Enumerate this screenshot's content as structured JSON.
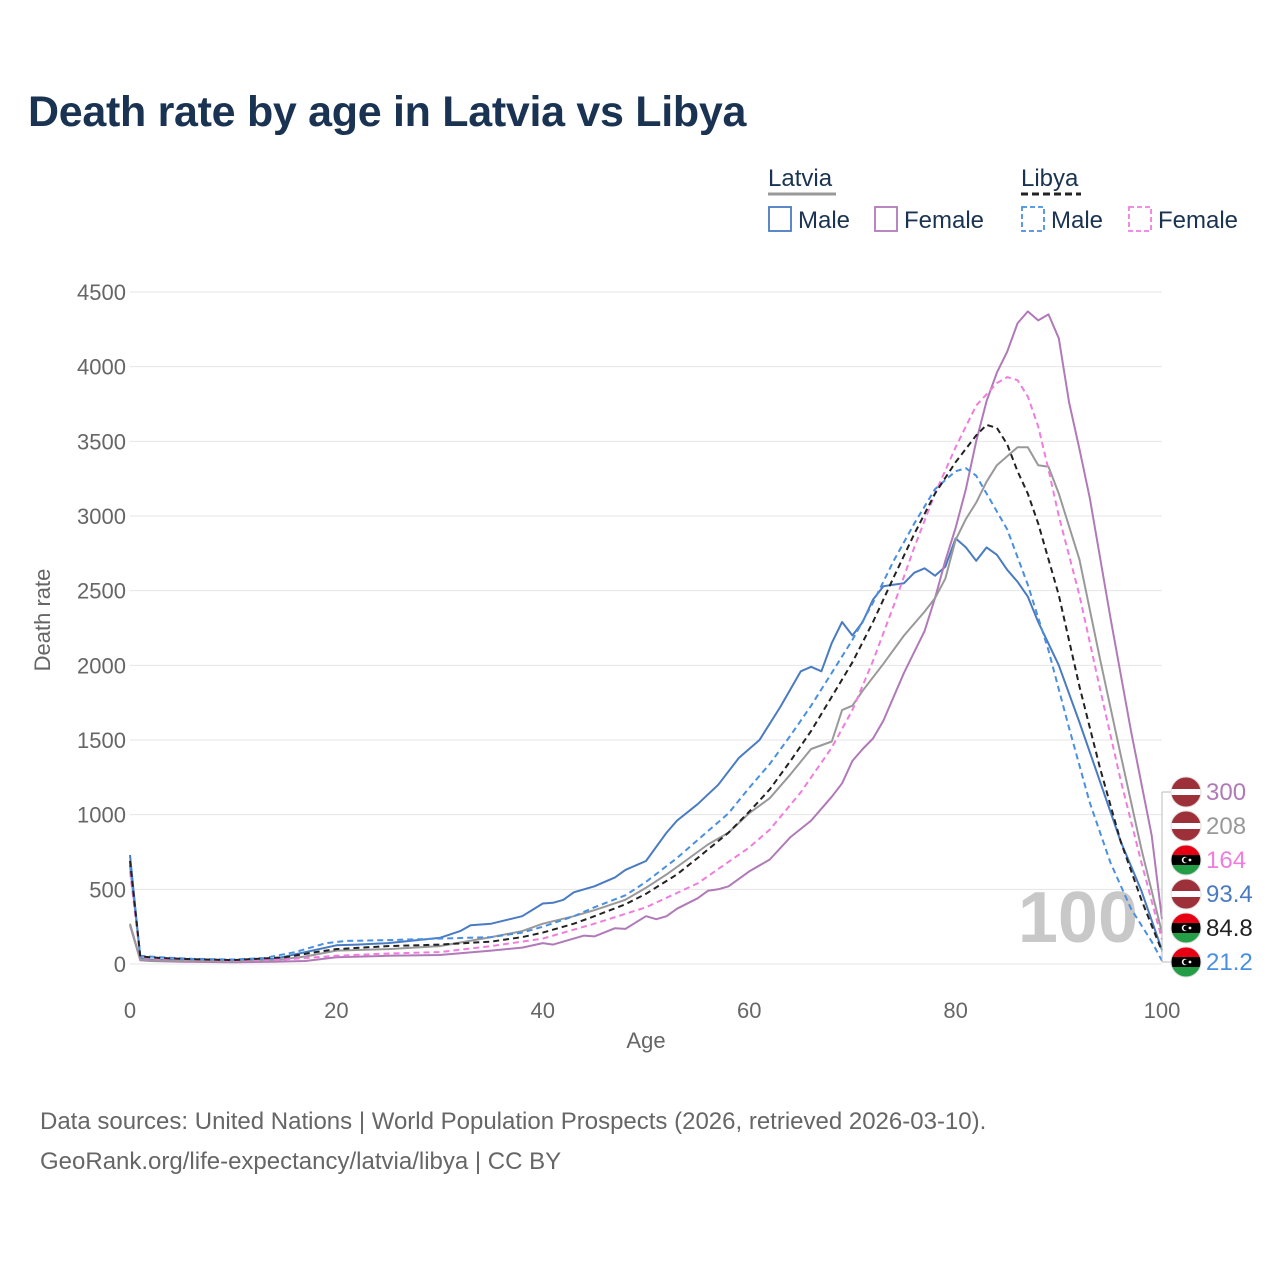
{
  "page": {
    "title": "Death rate by age in Latvia vs Libya",
    "source_line1": "Data sources: United Nations | World Population Prospects (2026, retrieved 2026-03-10).",
    "source_line2": "GeoRank.org/life-expectancy/latvia/libya | CC BY"
  },
  "legend": {
    "groups": [
      {
        "label": "Latvia",
        "items": [
          {
            "label": "Male",
            "color": "#4a7bc2",
            "dashed": false
          },
          {
            "label": "Female",
            "color": "#b07ab8",
            "dashed": false
          }
        ]
      },
      {
        "label": "Libya",
        "items": [
          {
            "label": "Male",
            "color": "#4a8fe0",
            "dashed": true
          },
          {
            "label": "Female",
            "color": "#f07ddd",
            "dashed": true
          }
        ]
      }
    ]
  },
  "chart_data": {
    "type": "line",
    "title": "Death rate by age in Latvia vs Libya",
    "xlabel": "Age",
    "ylabel": "Death rate",
    "xlim": [
      0,
      100
    ],
    "ylim": [
      0,
      4500
    ],
    "xticks": [
      0,
      20,
      40,
      60,
      80,
      100
    ],
    "yticks": [
      0,
      500,
      1000,
      1500,
      2000,
      2500,
      3000,
      3500,
      4000,
      4500
    ],
    "current_age_label": "100",
    "series": [
      {
        "name": "Latvia Male",
        "color": "#4a7bc2",
        "dashed": false,
        "end_label": "93.4",
        "points": [
          [
            0,
            730
          ],
          [
            1,
            40
          ],
          [
            2,
            30
          ],
          [
            5,
            25
          ],
          [
            10,
            20
          ],
          [
            14,
            35
          ],
          [
            17,
            80
          ],
          [
            20,
            125
          ],
          [
            22,
            130
          ],
          [
            25,
            140
          ],
          [
            30,
            175
          ],
          [
            32,
            220
          ],
          [
            33,
            260
          ],
          [
            35,
            270
          ],
          [
            38,
            320
          ],
          [
            40,
            405
          ],
          [
            41,
            410
          ],
          [
            42,
            430
          ],
          [
            43,
            480
          ],
          [
            45,
            520
          ],
          [
            47,
            580
          ],
          [
            48,
            630
          ],
          [
            50,
            690
          ],
          [
            52,
            880
          ],
          [
            53,
            960
          ],
          [
            55,
            1070
          ],
          [
            57,
            1200
          ],
          [
            59,
            1380
          ],
          [
            61,
            1500
          ],
          [
            63,
            1720
          ],
          [
            65,
            1960
          ],
          [
            66,
            1990
          ],
          [
            67,
            1960
          ],
          [
            68,
            2150
          ],
          [
            69,
            2290
          ],
          [
            70,
            2200
          ],
          [
            71,
            2290
          ],
          [
            72,
            2440
          ],
          [
            73,
            2530
          ],
          [
            75,
            2550
          ],
          [
            76,
            2620
          ],
          [
            77,
            2650
          ],
          [
            78,
            2600
          ],
          [
            79,
            2660
          ],
          [
            80,
            2850
          ],
          [
            81,
            2790
          ],
          [
            82,
            2700
          ],
          [
            83,
            2790
          ],
          [
            84,
            2740
          ],
          [
            85,
            2640
          ],
          [
            86,
            2560
          ],
          [
            87,
            2460
          ],
          [
            88,
            2290
          ],
          [
            90,
            2000
          ],
          [
            92,
            1620
          ],
          [
            94,
            1220
          ],
          [
            96,
            820
          ],
          [
            98,
            490
          ],
          [
            100,
            93.4
          ]
        ]
      },
      {
        "name": "Latvia Female",
        "color": "#b07ab8",
        "dashed": false,
        "end_label": "300",
        "points": [
          [
            0,
            260
          ],
          [
            1,
            25
          ],
          [
            2,
            20
          ],
          [
            5,
            15
          ],
          [
            10,
            12
          ],
          [
            14,
            15
          ],
          [
            17,
            20
          ],
          [
            20,
            45
          ],
          [
            25,
            55
          ],
          [
            30,
            60
          ],
          [
            35,
            90
          ],
          [
            38,
            110
          ],
          [
            40,
            140
          ],
          [
            41,
            130
          ],
          [
            42,
            150
          ],
          [
            44,
            190
          ],
          [
            45,
            185
          ],
          [
            47,
            240
          ],
          [
            48,
            235
          ],
          [
            50,
            320
          ],
          [
            51,
            300
          ],
          [
            52,
            320
          ],
          [
            53,
            370
          ],
          [
            55,
            440
          ],
          [
            56,
            490
          ],
          [
            57,
            500
          ],
          [
            58,
            520
          ],
          [
            60,
            620
          ],
          [
            62,
            700
          ],
          [
            64,
            850
          ],
          [
            66,
            960
          ],
          [
            68,
            1120
          ],
          [
            69,
            1210
          ],
          [
            70,
            1360
          ],
          [
            71,
            1440
          ],
          [
            72,
            1510
          ],
          [
            73,
            1630
          ],
          [
            75,
            1950
          ],
          [
            77,
            2230
          ],
          [
            78,
            2450
          ],
          [
            79,
            2700
          ],
          [
            80,
            2920
          ],
          [
            81,
            3180
          ],
          [
            82,
            3500
          ],
          [
            83,
            3770
          ],
          [
            84,
            3960
          ],
          [
            85,
            4100
          ],
          [
            86,
            4290
          ],
          [
            87,
            4370
          ],
          [
            88,
            4310
          ],
          [
            89,
            4350
          ],
          [
            90,
            4190
          ],
          [
            91,
            3760
          ],
          [
            92,
            3450
          ],
          [
            93,
            3120
          ],
          [
            95,
            2320
          ],
          [
            97,
            1560
          ],
          [
            99,
            860
          ],
          [
            100,
            300
          ]
        ]
      },
      {
        "name": "Latvia Total",
        "color": "#999999",
        "dashed": false,
        "end_label": "208",
        "points": [
          [
            0,
            270
          ],
          [
            1,
            30
          ],
          [
            2,
            25
          ],
          [
            5,
            20
          ],
          [
            10,
            18
          ],
          [
            14,
            25
          ],
          [
            17,
            50
          ],
          [
            20,
            90
          ],
          [
            25,
            100
          ],
          [
            30,
            120
          ],
          [
            35,
            180
          ],
          [
            38,
            220
          ],
          [
            40,
            270
          ],
          [
            43,
            320
          ],
          [
            45,
            360
          ],
          [
            48,
            430
          ],
          [
            50,
            510
          ],
          [
            52,
            600
          ],
          [
            54,
            700
          ],
          [
            56,
            800
          ],
          [
            58,
            880
          ],
          [
            60,
            1010
          ],
          [
            62,
            1110
          ],
          [
            64,
            1270
          ],
          [
            66,
            1440
          ],
          [
            68,
            1490
          ],
          [
            69,
            1700
          ],
          [
            70,
            1730
          ],
          [
            71,
            1830
          ],
          [
            73,
            2010
          ],
          [
            75,
            2200
          ],
          [
            77,
            2360
          ],
          [
            78,
            2450
          ],
          [
            79,
            2580
          ],
          [
            80,
            2840
          ],
          [
            81,
            2980
          ],
          [
            82,
            3090
          ],
          [
            83,
            3230
          ],
          [
            84,
            3340
          ],
          [
            85,
            3400
          ],
          [
            86,
            3460
          ],
          [
            87,
            3460
          ],
          [
            88,
            3340
          ],
          [
            89,
            3330
          ],
          [
            90,
            3150
          ],
          [
            92,
            2710
          ],
          [
            94,
            2040
          ],
          [
            96,
            1400
          ],
          [
            98,
            770
          ],
          [
            100,
            208
          ]
        ]
      },
      {
        "name": "Libya Male",
        "color": "#4a8fe0",
        "dashed": true,
        "end_label": "21.2",
        "points": [
          [
            0,
            660
          ],
          [
            1,
            55
          ],
          [
            3,
            45
          ],
          [
            6,
            35
          ],
          [
            10,
            30
          ],
          [
            13,
            40
          ],
          [
            16,
            80
          ],
          [
            19,
            140
          ],
          [
            21,
            155
          ],
          [
            25,
            160
          ],
          [
            30,
            170
          ],
          [
            35,
            180
          ],
          [
            38,
            210
          ],
          [
            40,
            250
          ],
          [
            43,
            320
          ],
          [
            45,
            380
          ],
          [
            48,
            460
          ],
          [
            50,
            550
          ],
          [
            53,
            710
          ],
          [
            55,
            830
          ],
          [
            58,
            1010
          ],
          [
            60,
            1180
          ],
          [
            62,
            1340
          ],
          [
            64,
            1530
          ],
          [
            66,
            1730
          ],
          [
            68,
            1950
          ],
          [
            70,
            2170
          ],
          [
            72,
            2420
          ],
          [
            74,
            2700
          ],
          [
            76,
            2950
          ],
          [
            78,
            3180
          ],
          [
            80,
            3300
          ],
          [
            81,
            3320
          ],
          [
            82,
            3270
          ],
          [
            83,
            3150
          ],
          [
            85,
            2910
          ],
          [
            87,
            2540
          ],
          [
            89,
            2100
          ],
          [
            91,
            1580
          ],
          [
            93,
            1080
          ],
          [
            95,
            680
          ],
          [
            97,
            370
          ],
          [
            99,
            150
          ],
          [
            100,
            21.2
          ]
        ]
      },
      {
        "name": "Libya Female",
        "color": "#f07ddd",
        "dashed": true,
        "end_label": "164",
        "points": [
          [
            0,
            620
          ],
          [
            1,
            45
          ],
          [
            3,
            35
          ],
          [
            6,
            28
          ],
          [
            10,
            22
          ],
          [
            15,
            30
          ],
          [
            20,
            55
          ],
          [
            25,
            70
          ],
          [
            30,
            80
          ],
          [
            35,
            120
          ],
          [
            40,
            170
          ],
          [
            45,
            270
          ],
          [
            50,
            380
          ],
          [
            55,
            540
          ],
          [
            60,
            780
          ],
          [
            62,
            900
          ],
          [
            65,
            1150
          ],
          [
            68,
            1450
          ],
          [
            70,
            1700
          ],
          [
            72,
            2030
          ],
          [
            74,
            2400
          ],
          [
            76,
            2790
          ],
          [
            78,
            3150
          ],
          [
            80,
            3460
          ],
          [
            82,
            3740
          ],
          [
            84,
            3890
          ],
          [
            85,
            3930
          ],
          [
            86,
            3910
          ],
          [
            87,
            3800
          ],
          [
            88,
            3600
          ],
          [
            89,
            3310
          ],
          [
            90,
            3000
          ],
          [
            92,
            2470
          ],
          [
            94,
            1840
          ],
          [
            96,
            1230
          ],
          [
            98,
            680
          ],
          [
            100,
            164
          ]
        ]
      },
      {
        "name": "Libya Total",
        "color": "#222222",
        "dashed": true,
        "end_label": "84.8",
        "points": [
          [
            0,
            690
          ],
          [
            1,
            50
          ],
          [
            3,
            40
          ],
          [
            6,
            32
          ],
          [
            10,
            26
          ],
          [
            15,
            45
          ],
          [
            18,
            80
          ],
          [
            20,
            100
          ],
          [
            25,
            120
          ],
          [
            30,
            130
          ],
          [
            35,
            150
          ],
          [
            38,
            180
          ],
          [
            40,
            210
          ],
          [
            43,
            270
          ],
          [
            45,
            320
          ],
          [
            48,
            400
          ],
          [
            50,
            470
          ],
          [
            53,
            600
          ],
          [
            55,
            710
          ],
          [
            58,
            880
          ],
          [
            60,
            1020
          ],
          [
            62,
            1170
          ],
          [
            64,
            1360
          ],
          [
            66,
            1560
          ],
          [
            68,
            1790
          ],
          [
            70,
            2020
          ],
          [
            72,
            2290
          ],
          [
            74,
            2590
          ],
          [
            76,
            2880
          ],
          [
            78,
            3150
          ],
          [
            80,
            3360
          ],
          [
            82,
            3540
          ],
          [
            83,
            3610
          ],
          [
            84,
            3590
          ],
          [
            85,
            3480
          ],
          [
            86,
            3300
          ],
          [
            87,
            3150
          ],
          [
            88,
            2950
          ],
          [
            90,
            2470
          ],
          [
            92,
            1860
          ],
          [
            94,
            1310
          ],
          [
            96,
            820
          ],
          [
            98,
            430
          ],
          [
            100,
            84.8
          ]
        ]
      }
    ]
  }
}
